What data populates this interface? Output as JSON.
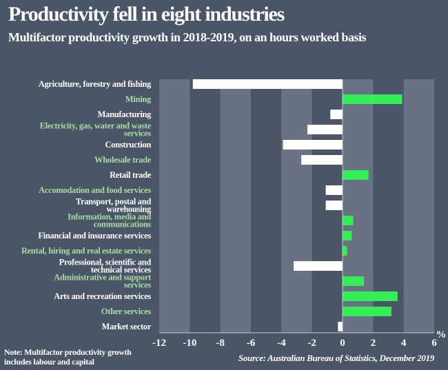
{
  "chart_data": {
    "type": "bar",
    "orientation": "horizontal",
    "title": "Productivity fell in eight industries",
    "subtitle": "Multifactor productivity growth in 2018-2019, on an hours worked basis",
    "xlabel": "%",
    "xlim": [
      -12,
      6
    ],
    "xticks": [
      -12,
      -10,
      -8,
      -6,
      -4,
      -2,
      0,
      2,
      4,
      6
    ],
    "categories": [
      "Agriculture, forestry and fishing",
      "Mining",
      "Manufacturing",
      "Electricity, gas, water and waste services",
      "Construction",
      "Wholesale trade",
      "Retail trade",
      "Accomodation and food services",
      "Transport, postal and warehousing",
      "Information, media and communications",
      "Financial and insurance services",
      "Rental, hiring and real estate services",
      "Professional, scientific and technical services",
      "Administrative and support services",
      "Arts and recreation services",
      "Other services",
      "Market sector"
    ],
    "label_lines": [
      [
        "Agriculture, forestry and fishing"
      ],
      [
        "Mining"
      ],
      [
        "Manufacturing"
      ],
      [
        "Electricity, gas, water and waste",
        "services"
      ],
      [
        "Construction"
      ],
      [
        "Wholesale trade"
      ],
      [
        "Retail trade"
      ],
      [
        "Accomodation and food services"
      ],
      [
        "Transport, postal and",
        "warehousing"
      ],
      [
        "Information, media and",
        "communications"
      ],
      [
        "Financial and insurance services"
      ],
      [
        "Rental, hiring and real estate services"
      ],
      [
        "Professional, scientific and",
        "technical services"
      ],
      [
        "Administrative and support",
        "services"
      ],
      [
        "Arts and recreation services"
      ],
      [
        "Other services"
      ],
      [
        "Market sector"
      ]
    ],
    "values": [
      -9.8,
      3.9,
      -0.8,
      -2.3,
      -3.9,
      -2.7,
      1.7,
      -1.1,
      -1.1,
      0.7,
      0.6,
      0.3,
      -3.2,
      1.4,
      3.6,
      3.2,
      -0.3
    ],
    "grid": "alternating vertical bands",
    "colors": {
      "background": "#4a5567",
      "band": "#687284",
      "positive": "#33ee55",
      "negative": "#ffffff",
      "label_alt": "#a8dca0",
      "label": "#ffffff"
    }
  },
  "note": [
    "Note: Multifactor productivity growth",
    "includes labour and capital"
  ],
  "source": "Source: Australian Bureau of Statistics, December 2019"
}
